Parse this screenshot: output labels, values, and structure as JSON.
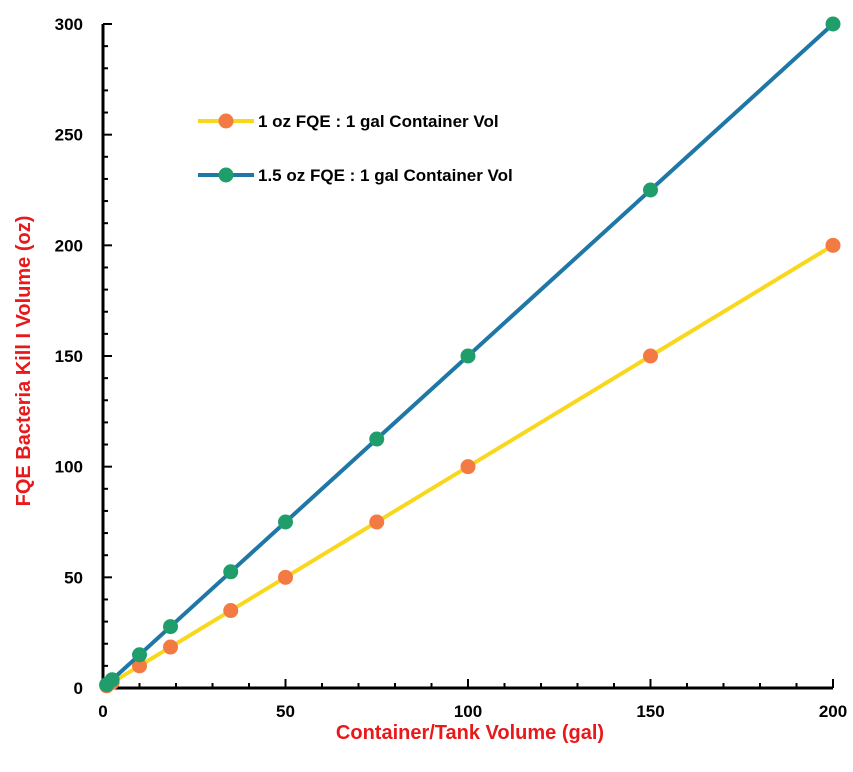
{
  "chart_data": {
    "type": "line",
    "xlabel": "Container/Tank Volume (gal)",
    "ylabel": "FQE Bacteria Kill I Volume (oz)",
    "label_color": "#e8191b",
    "xlim": [
      0,
      200
    ],
    "ylim": [
      0,
      300
    ],
    "x_ticks": [
      0,
      50,
      100,
      150,
      200
    ],
    "y_ticks": [
      0,
      50,
      100,
      150,
      200,
      250,
      300
    ],
    "grid": false,
    "legend_position": "upper-left",
    "series": [
      {
        "name": "1 oz FQE : 1 gal Container Vol",
        "line_color": "#f9d71c",
        "marker_color": "#f47a43",
        "x": [
          1,
          2.5,
          10,
          18.5,
          35,
          50,
          75,
          100,
          150,
          200
        ],
        "y": [
          1,
          2.5,
          10,
          18.5,
          35,
          50,
          75,
          100,
          150,
          200
        ]
      },
      {
        "name": "1.5 oz FQE : 1 gal Container Vol",
        "line_color": "#1f77a6",
        "marker_color": "#1f9e6b",
        "x": [
          1,
          2.5,
          10,
          18.5,
          35,
          50,
          75,
          100,
          150,
          200
        ],
        "y": [
          1.5,
          3.75,
          15,
          27.75,
          52.5,
          75,
          112.5,
          150,
          225,
          300
        ]
      }
    ]
  }
}
